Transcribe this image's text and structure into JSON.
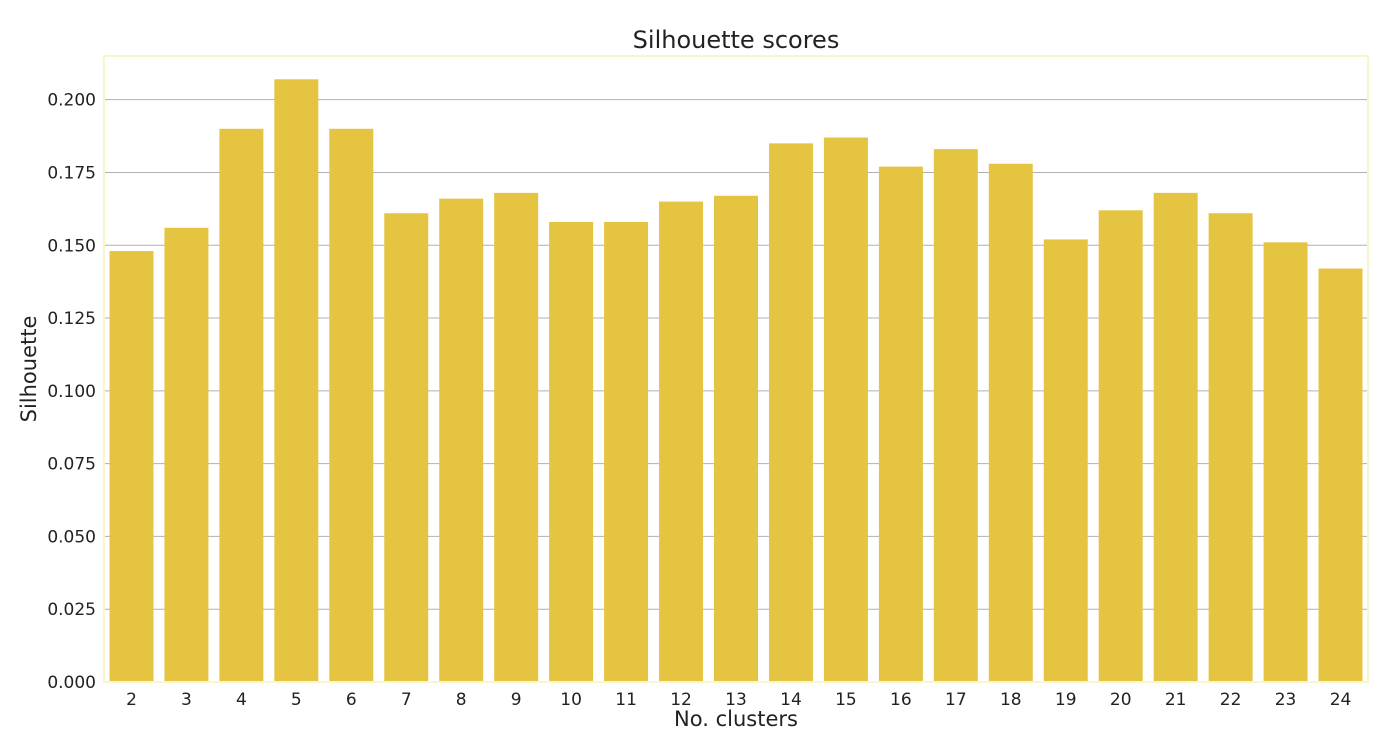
{
  "chart_data": {
    "type": "bar",
    "title": "Silhouette scores",
    "xlabel": "No. clusters",
    "ylabel": "Silhouette",
    "categories": [
      "2",
      "3",
      "4",
      "5",
      "6",
      "7",
      "8",
      "9",
      "10",
      "11",
      "12",
      "13",
      "14",
      "15",
      "16",
      "17",
      "18",
      "19",
      "20",
      "21",
      "22",
      "23",
      "24"
    ],
    "values": [
      0.148,
      0.156,
      0.19,
      0.207,
      0.19,
      0.161,
      0.166,
      0.168,
      0.158,
      0.158,
      0.165,
      0.167,
      0.185,
      0.187,
      0.177,
      0.183,
      0.178,
      0.152,
      0.162,
      0.168,
      0.161,
      0.151,
      0.142
    ],
    "ylim": [
      0,
      0.215
    ],
    "yticks": [
      "0.000",
      "0.025",
      "0.050",
      "0.075",
      "0.100",
      "0.125",
      "0.150",
      "0.175",
      "0.200"
    ],
    "grid": "y",
    "bar_color": "#e4c440",
    "grid_color": "#b0b0b0",
    "frame_color": "#f7f6cc"
  }
}
